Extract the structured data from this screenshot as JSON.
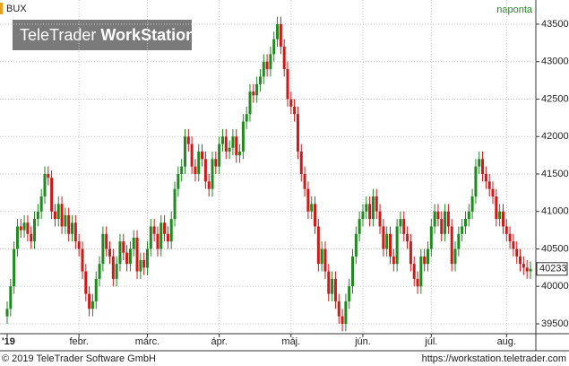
{
  "chart_data": {
    "type": "candlestick",
    "title": "BUX",
    "subtitle": "naponta",
    "watermark": [
      "TeleTrader",
      "WorkStation"
    ],
    "up_color": "#1f8a1f",
    "down_color": "#d01818",
    "grid": true,
    "ylim": [
      39368,
      43823
    ],
    "yticks": [
      39500,
      40000,
      40500,
      41000,
      41500,
      42000,
      42500,
      43000,
      43500
    ],
    "categories": [
      "'19",
      null,
      null,
      null,
      null,
      null,
      null,
      null,
      null,
      null,
      null,
      null,
      null,
      null,
      null,
      null,
      null,
      null,
      null,
      null,
      null,
      "febr.",
      null,
      null,
      null,
      null,
      null,
      null,
      null,
      null,
      null,
      null,
      null,
      null,
      null,
      null,
      null,
      null,
      null,
      null,
      null,
      "márc.",
      null,
      null,
      null,
      null,
      null,
      null,
      null,
      null,
      null,
      null,
      null,
      null,
      null,
      null,
      null,
      null,
      null,
      null,
      null,
      null,
      "ápr.",
      null,
      null,
      null,
      null,
      null,
      null,
      null,
      null,
      null,
      null,
      null,
      null,
      null,
      null,
      null,
      null,
      null,
      null,
      null,
      null,
      "máj.",
      null,
      null,
      null,
      null,
      null,
      null,
      null,
      null,
      null,
      null,
      null,
      null,
      null,
      null,
      null,
      null,
      null,
      null,
      null,
      null,
      "jún.",
      null,
      null,
      null,
      null,
      null,
      null,
      null,
      null,
      null,
      null,
      null,
      null,
      null,
      null,
      null,
      null,
      null,
      null,
      null,
      "júl.",
      null,
      null,
      null,
      null,
      null,
      null,
      null,
      null,
      null,
      null,
      null,
      null,
      null,
      null,
      null,
      null,
      null,
      null,
      null,
      null,
      null,
      "aug.",
      null,
      null,
      null,
      null,
      null,
      null,
      null
    ],
    "open": [
      39600,
      39700,
      40000,
      40500,
      40800,
      40750,
      40850,
      40700,
      40600,
      40900,
      41000,
      41200,
      41500,
      41450,
      41000,
      40900,
      41100,
      40800,
      40950,
      40700,
      40850,
      40600,
      40500,
      40200,
      39900,
      39700,
      39800,
      40100,
      40300,
      40700,
      40500,
      40400,
      40100,
      40300,
      40600,
      40450,
      40300,
      40500,
      40650,
      40200,
      40350,
      40250,
      40500,
      40800,
      40700,
      40500,
      40850,
      40700,
      40600,
      40900,
      41300,
      41500,
      41600,
      42000,
      41900,
      41600,
      41500,
      41800,
      41700,
      41400,
      41300,
      41700,
      41600,
      41900,
      42000,
      41800,
      41850,
      42000,
      41750,
      41800,
      42200,
      42300,
      42600,
      42550,
      42700,
      42800,
      43000,
      42900,
      43100,
      43300,
      43500,
      43200,
      42900,
      42500,
      42400,
      42300,
      41800,
      41500,
      41300,
      41000,
      41100,
      40800,
      40300,
      40500,
      40200,
      39900,
      40100,
      39800,
      39600,
      39500,
      39800,
      40000,
      40400,
      40700,
      40900,
      41000,
      41100,
      40900,
      41200,
      41000,
      40800,
      40500,
      40700,
      40400,
      40300,
      40800,
      40900,
      40700,
      40600,
      40300,
      40100,
      40000,
      40400,
      40300,
      40500,
      40800,
      41000,
      40900,
      40700,
      41000,
      40800,
      40300,
      40500,
      40700,
      40800,
      40900,
      41000,
      41200,
      41600,
      41700,
      41500,
      41400,
      41300,
      41200,
      40900,
      41000,
      40800,
      40700,
      40600,
      40500,
      40400,
      40300,
      40250,
      40200
    ],
    "high": [
      39800,
      40100,
      40600,
      40900,
      40900,
      40950,
      40950,
      40800,
      41000,
      41100,
      41300,
      41600,
      41600,
      41550,
      41100,
      41200,
      41200,
      41050,
      41050,
      40950,
      40950,
      40700,
      40600,
      40300,
      40000,
      39900,
      40200,
      40400,
      40800,
      40800,
      40600,
      40500,
      40400,
      40700,
      40700,
      40550,
      40600,
      40750,
      40750,
      40450,
      40450,
      40600,
      40900,
      40900,
      40800,
      40950,
      40950,
      40800,
      41000,
      41400,
      41600,
      41700,
      42100,
      42100,
      42000,
      41700,
      41900,
      41900,
      41800,
      41500,
      41800,
      41800,
      42000,
      42100,
      42100,
      41950,
      42100,
      42100,
      41900,
      42300,
      42400,
      42700,
      42700,
      42800,
      42900,
      43100,
      43100,
      43200,
      43400,
      43600,
      43600,
      43300,
      43000,
      42600,
      42500,
      42400,
      41900,
      41600,
      41400,
      41200,
      41200,
      40900,
      40600,
      40600,
      40300,
      40200,
      40200,
      39900,
      39700,
      39900,
      40100,
      40500,
      40800,
      41000,
      41100,
      41200,
      41200,
      41300,
      41300,
      41100,
      40900,
      40800,
      40800,
      40500,
      40900,
      41000,
      41000,
      40800,
      40700,
      40400,
      40200,
      40500,
      40500,
      40600,
      40900,
      41100,
      41100,
      41000,
      41100,
      41100,
      40900,
      40600,
      40800,
      40900,
      41000,
      41100,
      41300,
      41700,
      41800,
      41800,
      41600,
      41500,
      41400,
      41300,
      41100,
      41100,
      40900,
      40800,
      40700,
      40600,
      40500,
      40400,
      40350,
      40333
    ],
    "low": [
      39500,
      39600,
      39900,
      40400,
      40650,
      40650,
      40600,
      40500,
      40500,
      40800,
      40900,
      41100,
      41350,
      40900,
      40800,
      40800,
      40700,
      40700,
      40600,
      40600,
      40500,
      40400,
      40100,
      39800,
      39600,
      39600,
      39700,
      40000,
      40200,
      40400,
      40300,
      40000,
      40000,
      40200,
      40350,
      40200,
      40200,
      40400,
      40100,
      40100,
      40150,
      40150,
      40400,
      40600,
      40400,
      40400,
      40600,
      40500,
      40500,
      40800,
      41200,
      41400,
      41500,
      41800,
      41500,
      41400,
      41400,
      41600,
      41300,
      41200,
      41200,
      41500,
      41500,
      41800,
      41700,
      41700,
      41750,
      41650,
      41650,
      41700,
      42100,
      42200,
      42450,
      42450,
      42600,
      42700,
      42800,
      42800,
      43000,
      43200,
      43100,
      42800,
      42400,
      42300,
      42200,
      41700,
      41400,
      41200,
      40900,
      40900,
      40700,
      40200,
      40200,
      40100,
      39800,
      39800,
      39700,
      39500,
      39400,
      39400,
      39700,
      39900,
      40300,
      40600,
      40800,
      40900,
      40800,
      40800,
      40900,
      40700,
      40400,
      40400,
      40300,
      40200,
      40200,
      40700,
      40600,
      40500,
      40200,
      40000,
      39900,
      39900,
      40200,
      40200,
      40400,
      40700,
      40800,
      40600,
      40600,
      40700,
      40200,
      40200,
      40400,
      40600,
      40700,
      40800,
      40900,
      41100,
      41500,
      41400,
      41300,
      41200,
      41100,
      40800,
      40800,
      40700,
      40600,
      40500,
      40400,
      40300,
      40200,
      40150,
      40100,
      40100
    ],
    "close": [
      39700,
      40000,
      40500,
      40800,
      40750,
      40850,
      40700,
      40600,
      40900,
      41000,
      41200,
      41500,
      41450,
      41000,
      40900,
      41100,
      40800,
      40950,
      40700,
      40850,
      40600,
      40500,
      40200,
      39900,
      39700,
      39800,
      40100,
      40300,
      40700,
      40500,
      40400,
      40100,
      40300,
      40600,
      40450,
      40300,
      40500,
      40650,
      40200,
      40350,
      40250,
      40500,
      40800,
      40700,
      40500,
      40850,
      40700,
      40600,
      40900,
      41300,
      41500,
      41600,
      42000,
      41900,
      41600,
      41500,
      41800,
      41700,
      41400,
      41300,
      41700,
      41600,
      41900,
      42000,
      41800,
      41850,
      42000,
      41750,
      41800,
      42200,
      42300,
      42600,
      42550,
      42700,
      42800,
      43000,
      42900,
      43100,
      43300,
      43500,
      43200,
      42900,
      42500,
      42400,
      42300,
      41800,
      41500,
      41300,
      41000,
      41100,
      40800,
      40300,
      40500,
      40200,
      39900,
      40100,
      39800,
      39600,
      39500,
      39800,
      40000,
      40400,
      40700,
      40900,
      41000,
      41100,
      40900,
      41200,
      41000,
      40800,
      40500,
      40700,
      40400,
      40300,
      40800,
      40900,
      40700,
      40600,
      40300,
      40100,
      40000,
      40400,
      40300,
      40500,
      40800,
      41000,
      40900,
      40700,
      41000,
      40800,
      40300,
      40500,
      40700,
      40800,
      40900,
      41000,
      41200,
      41600,
      41700,
      41500,
      41400,
      41300,
      41200,
      40900,
      41000,
      40800,
      40700,
      40600,
      40500,
      40400,
      40300,
      40250,
      40200,
      40233
    ]
  },
  "footer": {
    "copyright": "© 2019 TeleTrader Software GmbH",
    "url": "https://workstation.teletrader.com"
  }
}
